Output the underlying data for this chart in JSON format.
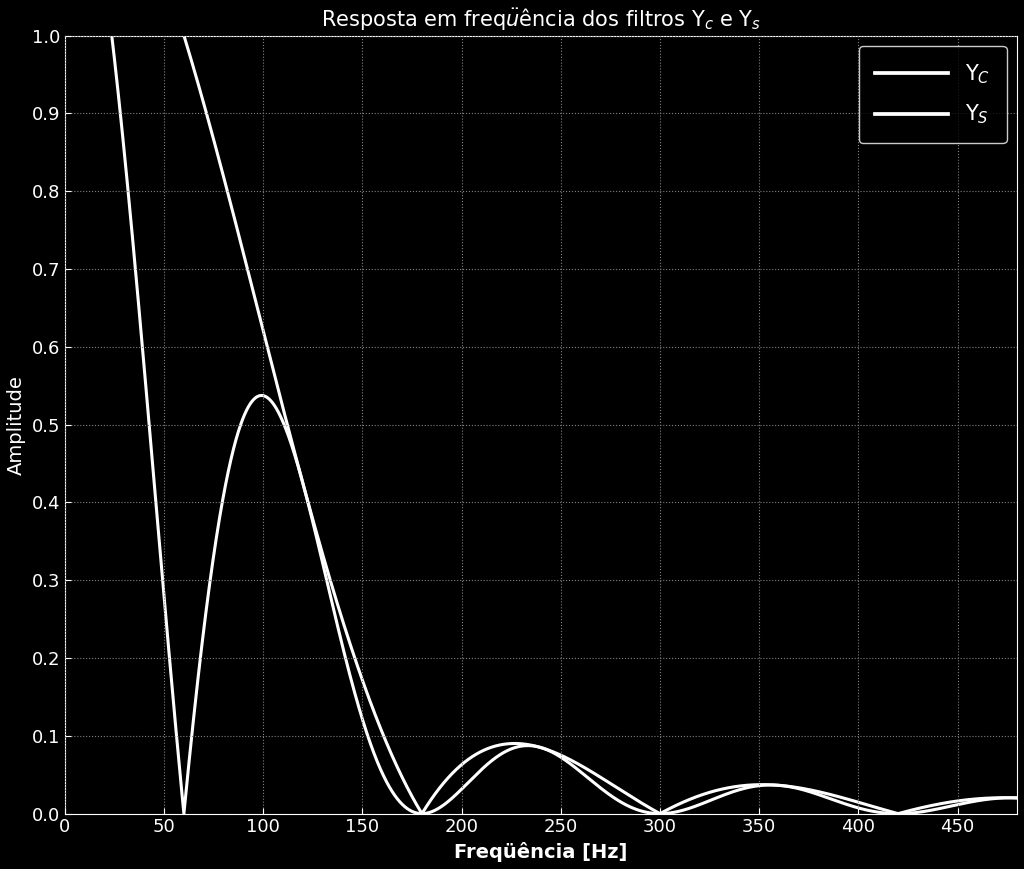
{
  "xlabel": "Freqüência [Hz]",
  "ylabel": "Amplitude",
  "xlim": [
    0,
    480
  ],
  "ylim": [
    0,
    1.0
  ],
  "xticks": [
    0,
    50,
    100,
    150,
    200,
    250,
    300,
    350,
    400,
    450
  ],
  "yticks": [
    0,
    0.1,
    0.2,
    0.3,
    0.4,
    0.5,
    0.6,
    0.7,
    0.8,
    0.9,
    1
  ],
  "f1": 60,
  "background_color": "#000000",
  "line_color": "#ffffff",
  "grid_color": "#808080",
  "text_color": "#ffffff",
  "line_width": 2.2,
  "title_fontsize": 15,
  "label_fontsize": 14,
  "tick_fontsize": 13,
  "legend_fontsize": 15,
  "figsize": [
    10.24,
    8.69
  ],
  "dpi": 100
}
